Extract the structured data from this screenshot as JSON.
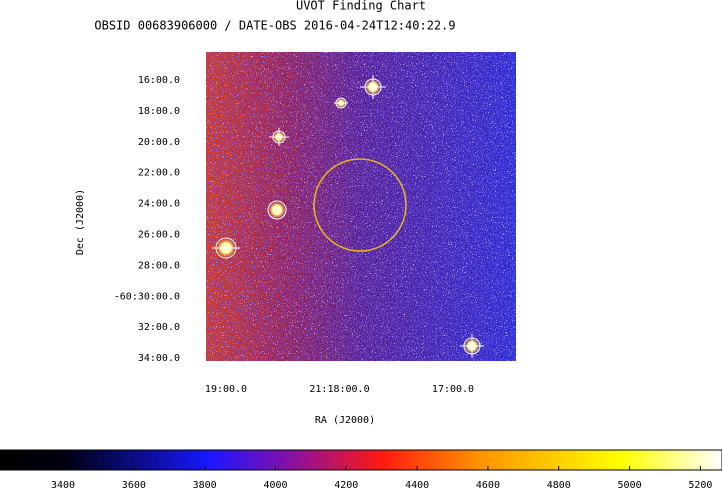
{
  "chart_data": {
    "type": "image",
    "title": "UVOT Finding Chart",
    "subtitle": "OBSID 00683906000 / DATE-OBS 2016-04-24T12:40:22.9",
    "xlabel": "RA (J2000)",
    "ylabel": "Dec (J2000)",
    "x_tick_labels": [
      "19:00.0",
      "21:18:00.0",
      "17:00.0"
    ],
    "y_tick_labels": [
      "16:00.0",
      "18:00.0",
      "20:00.0",
      "22:00.0",
      "24:00.0",
      "26:00.0",
      "28:00.0",
      "-60:30:00.0",
      "32:00.0",
      "34:00.0"
    ],
    "colorbar_lim": [
      3222,
      5261
    ],
    "colorbar_ticks": [
      3400,
      3600,
      3800,
      4000,
      4200,
      4400,
      4600,
      4800,
      5000,
      5200
    ]
  }
}
